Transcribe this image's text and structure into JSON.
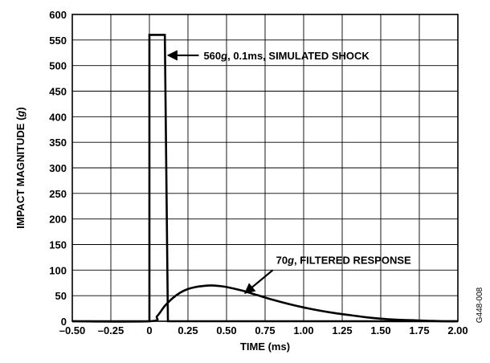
{
  "chart_data": {
    "type": "line",
    "xlabel": "TIME (ms)",
    "ylabel_prefix": "IMPACT MAGNITUDE (",
    "ylabel_unit": "g",
    "ylabel_suffix": ")",
    "xlim": [
      -0.5,
      2.0
    ],
    "ylim": [
      0,
      600
    ],
    "x_ticks": [
      -0.5,
      -0.25,
      0,
      0.25,
      0.5,
      0.75,
      1.0,
      1.25,
      1.5,
      1.75,
      2.0
    ],
    "x_tick_labels": [
      "–0.50",
      "–0.25",
      "0",
      "0.25",
      "0.50",
      "0.75",
      "1.00",
      "1.25",
      "1.50",
      "1.75",
      "2.00"
    ],
    "y_ticks": [
      0,
      50,
      100,
      150,
      200,
      250,
      300,
      350,
      400,
      450,
      500,
      550,
      600
    ],
    "y_tick_labels": [
      "0",
      "50",
      "100",
      "150",
      "200",
      "250",
      "300",
      "350",
      "400",
      "450",
      "500",
      "550",
      "600"
    ],
    "grid": true,
    "series": [
      {
        "id": "simulated-shock",
        "x": [
          -0.5,
          0.0,
          0.0,
          0.1,
          0.12,
          2.0
        ],
        "y": [
          0,
          0,
          560,
          560,
          0,
          0
        ]
      },
      {
        "id": "filtered-response",
        "x": [
          -0.5,
          0.0,
          0.05,
          0.1,
          0.15,
          0.2,
          0.25,
          0.3,
          0.35,
          0.4,
          0.45,
          0.5,
          0.6,
          0.7,
          0.8,
          0.9,
          1.0,
          1.1,
          1.2,
          1.3,
          1.4,
          1.5,
          1.6,
          1.7,
          1.8,
          1.9,
          2.0
        ],
        "y": [
          0,
          0,
          10,
          30,
          45,
          56,
          63,
          67,
          69,
          70,
          69,
          67,
          60,
          51,
          42,
          34,
          27,
          21,
          16,
          12,
          8,
          5,
          3,
          2,
          1,
          0,
          0
        ]
      }
    ],
    "annotations": [
      {
        "id": "shock-label",
        "value": "560",
        "unit": "g",
        "text": ", 0.1ms, SIMULATED SHOCK",
        "arrow_to": [
          0.12,
          520
        ],
        "arrow_from": [
          0.32,
          520
        ]
      },
      {
        "id": "response-label",
        "value": "70",
        "unit": "g",
        "text": ", FILTERED RESPONSE",
        "arrow_to": [
          0.62,
          55
        ],
        "arrow_from": [
          0.8,
          100
        ]
      }
    ],
    "figure_code": "G448-008"
  }
}
